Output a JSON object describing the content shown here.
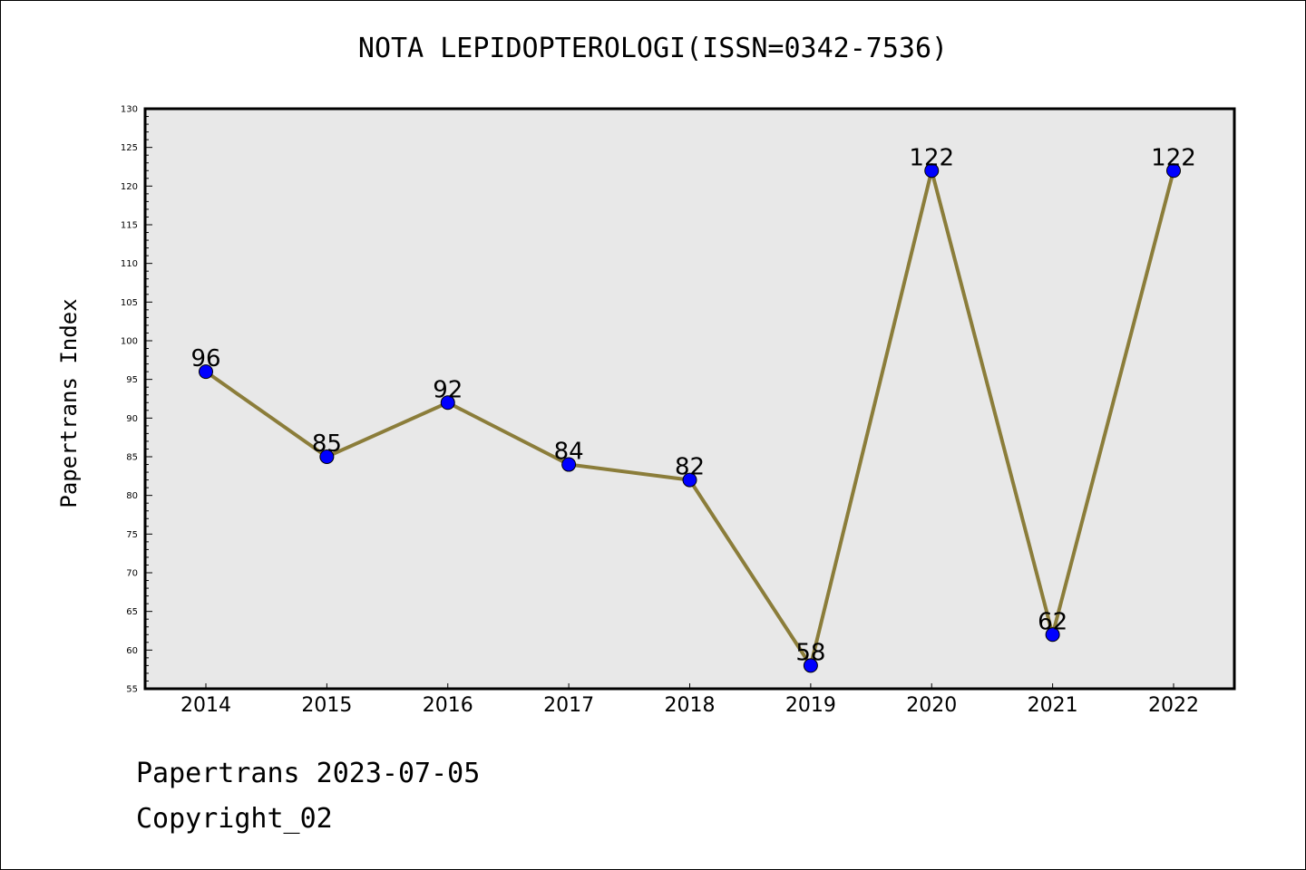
{
  "chart_data": {
    "type": "line",
    "title": "NOTA LEPIDOPTEROLOGI(ISSN=0342-7536)",
    "xlabel": "",
    "ylabel": "Papertrans Index",
    "categories": [
      "2014",
      "2015",
      "2016",
      "2017",
      "2018",
      "2019",
      "2020",
      "2021",
      "2022"
    ],
    "series": [
      {
        "values": [
          96,
          85,
          92,
          84,
          82,
          58,
          122,
          62,
          122
        ]
      }
    ],
    "ylim": [
      55,
      130
    ],
    "yticks": [
      55,
      60,
      65,
      70,
      75,
      80,
      85,
      90,
      95,
      100,
      105,
      110,
      115,
      120,
      125,
      130
    ],
    "grid": false,
    "colors": {
      "line": "#8b7d3a",
      "marker": "#0000ff",
      "plot_background": "#e8e8e8"
    }
  },
  "footer": {
    "line1": "Papertrans 2023-07-05",
    "line2": "Copyright_02"
  }
}
